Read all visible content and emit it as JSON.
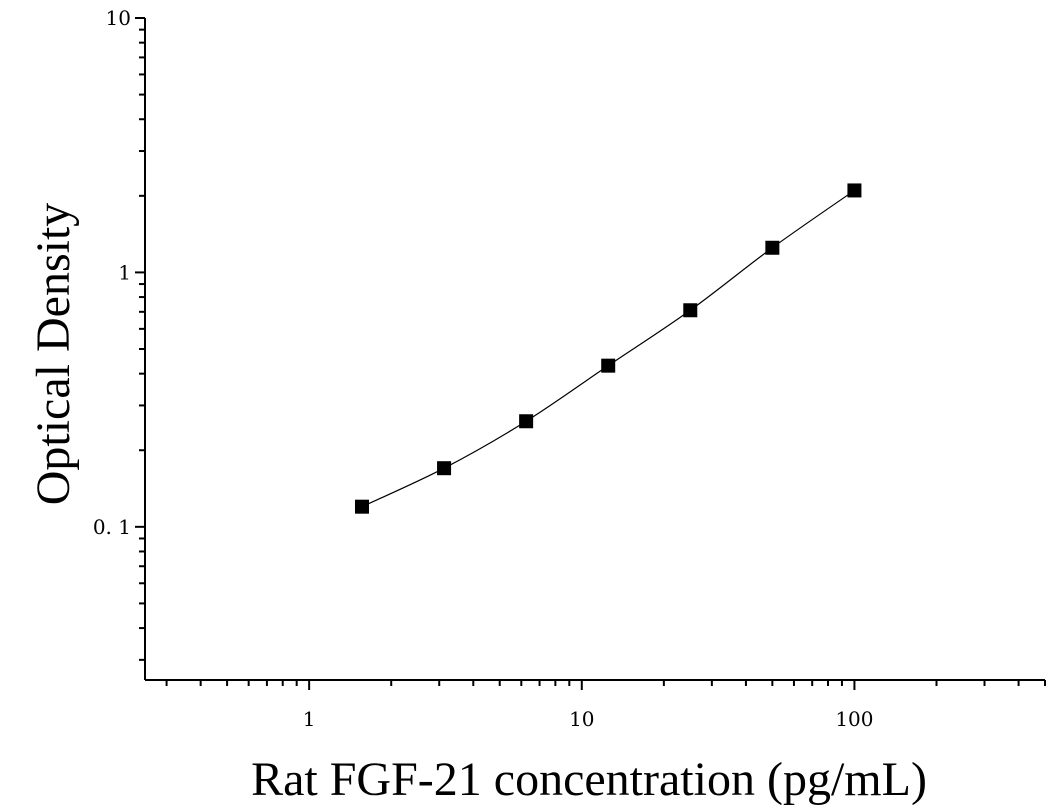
{
  "chart_data": {
    "type": "scatter",
    "title": "",
    "xlabel": "Rat FGF-21 concentration (pg/mL)",
    "ylabel": "Optical Density",
    "x_scale": "log",
    "y_scale": "log",
    "xlim": [
      0.25,
      500
    ],
    "ylim": [
      0.025,
      10
    ],
    "x_ticks": [
      {
        "value": 1,
        "label": "1"
      },
      {
        "value": 10,
        "label": "10"
      },
      {
        "value": 100,
        "label": "100"
      }
    ],
    "y_ticks": [
      {
        "value": 0.1,
        "label": "0. 1"
      },
      {
        "value": 1,
        "label": "1"
      },
      {
        "value": 10,
        "label": "10"
      }
    ],
    "grid": false,
    "legend": "none",
    "series": [
      {
        "marker": "square",
        "color": "#000000",
        "points": [
          {
            "x": 1.5625,
            "y": 0.12
          },
          {
            "x": 3.125,
            "y": 0.17
          },
          {
            "x": 6.25,
            "y": 0.26
          },
          {
            "x": 12.5,
            "y": 0.43
          },
          {
            "x": 25,
            "y": 0.71
          },
          {
            "x": 50,
            "y": 1.25
          },
          {
            "x": 100,
            "y": 2.1
          }
        ]
      }
    ],
    "fit_curve": {
      "color": "#000000",
      "style": "smooth line through points"
    }
  }
}
